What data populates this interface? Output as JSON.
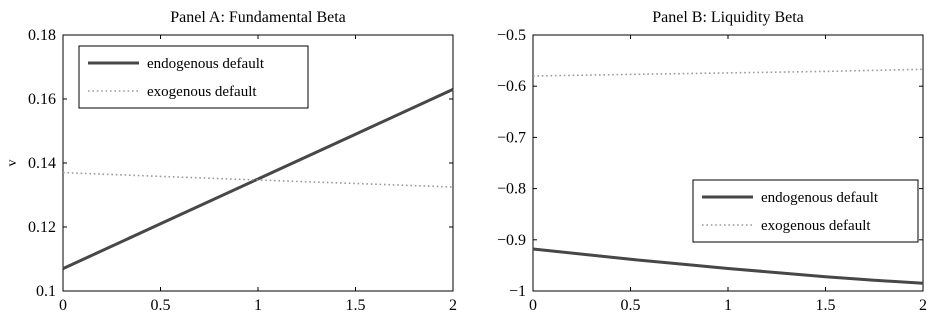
{
  "chart_data": [
    {
      "type": "line",
      "title": "Panel A: Fundamental Beta",
      "xlabel": "",
      "ylabel": "v",
      "xlim": [
        0,
        2
      ],
      "ylim": [
        0.1,
        0.18
      ],
      "xticks": [
        0,
        0.5,
        1,
        1.5,
        2
      ],
      "xtick_labels": [
        "0",
        "0.5",
        "1",
        "1.5",
        "2"
      ],
      "yticks": [
        0.1,
        0.12,
        0.14,
        0.16,
        0.18
      ],
      "ytick_labels": [
        "0.1",
        "0.12",
        "0.14",
        "0.16",
        "0.18"
      ],
      "grid": false,
      "legend_position": "top-left",
      "series": [
        {
          "name": "endogenous default",
          "style": "solid",
          "color": "#474747",
          "x": [
            0,
            0.5,
            1,
            1.5,
            2
          ],
          "y": [
            0.107,
            0.121,
            0.135,
            0.149,
            0.163
          ]
        },
        {
          "name": "exogenous default",
          "style": "dotted",
          "color": "#9a9a9a",
          "x": [
            0,
            0.5,
            1,
            1.5,
            2
          ],
          "y": [
            0.137,
            0.1358,
            0.1347,
            0.1336,
            0.1325
          ]
        }
      ]
    },
    {
      "type": "line",
      "title": "Panel B: Liquidity Beta",
      "xlabel": "",
      "ylabel": "",
      "xlim": [
        0,
        2
      ],
      "ylim": [
        -1,
        -0.5
      ],
      "xticks": [
        0,
        0.5,
        1,
        1.5,
        2
      ],
      "xtick_labels": [
        "0",
        "0.5",
        "1",
        "1.5",
        "2"
      ],
      "yticks": [
        -1,
        -0.9,
        -0.8,
        -0.7,
        -0.6,
        -0.5
      ],
      "ytick_labels": [
        "−1",
        "−0.9",
        "−0.8",
        "−0.7",
        "−0.6",
        "−0.5"
      ],
      "grid": false,
      "legend_position": "bottom-right",
      "series": [
        {
          "name": "endogenous default",
          "style": "solid",
          "color": "#474747",
          "x": [
            0,
            0.25,
            0.5,
            0.75,
            1,
            1.25,
            1.5,
            1.75,
            2
          ],
          "y": [
            -0.918,
            -0.928,
            -0.938,
            -0.947,
            -0.956,
            -0.964,
            -0.972,
            -0.979,
            -0.985
          ]
        },
        {
          "name": "exogenous default",
          "style": "dotted",
          "color": "#9a9a9a",
          "x": [
            0,
            0.5,
            1,
            1.5,
            2
          ],
          "y": [
            -0.58,
            -0.577,
            -0.574,
            -0.571,
            -0.567
          ]
        }
      ]
    }
  ]
}
